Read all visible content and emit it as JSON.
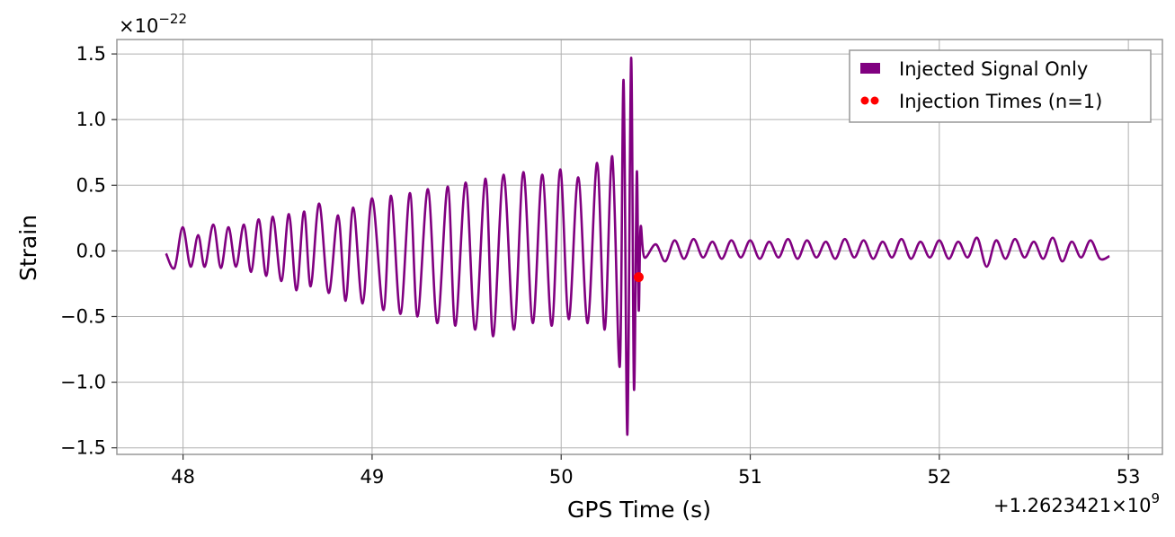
{
  "chart_data": {
    "type": "line",
    "title": "",
    "xlabel": "GPS Time (s)",
    "ylabel": "Strain",
    "x_offset_label": "+1.2623421×10",
    "x_offset_exp": "9",
    "y_scale_label": "×10",
    "y_scale_exp": "−22",
    "xlim": [
      47.65,
      53.18
    ],
    "ylim": [
      -1.55,
      1.61
    ],
    "grid": true,
    "legend_position": "top-right",
    "x_ticks": [
      48,
      49,
      50,
      51,
      52,
      53
    ],
    "x_tick_labels": [
      "48",
      "49",
      "50",
      "51",
      "52",
      "53"
    ],
    "y_ticks": [
      1.5,
      1.0,
      0.5,
      0.0,
      -0.5,
      -1.0,
      -1.5
    ],
    "y_tick_labels": [
      "1.5",
      "1.0",
      "0.5",
      "0.0",
      "−0.5",
      "−1.0",
      "−1.5"
    ],
    "series": [
      {
        "name": "Injected Signal Only",
        "color": "#800080",
        "x": [
          47.91,
          47.955,
          47.998,
          48.04,
          48.08,
          48.115,
          48.16,
          48.2,
          48.24,
          48.28,
          48.322,
          48.36,
          48.4,
          48.44,
          48.475,
          48.52,
          48.56,
          48.6,
          48.64,
          48.675,
          48.72,
          48.77,
          48.82,
          48.86,
          48.9,
          48.95,
          49.0,
          49.06,
          49.1,
          49.15,
          49.2,
          49.24,
          49.295,
          49.345,
          49.4,
          49.44,
          49.495,
          49.545,
          49.6,
          49.64,
          49.695,
          49.75,
          49.8,
          49.85,
          49.9,
          49.95,
          49.995,
          50.04,
          50.09,
          50.14,
          50.19,
          50.23,
          50.27,
          50.31,
          50.33,
          50.35,
          50.37,
          50.385,
          50.4,
          50.41,
          50.42,
          50.44,
          50.5,
          50.55,
          50.6,
          50.65,
          50.7,
          50.75,
          50.8,
          50.85,
          50.9,
          50.95,
          51.0,
          51.05,
          51.1,
          51.15,
          51.2,
          51.25,
          51.3,
          51.35,
          51.4,
          51.45,
          51.5,
          51.55,
          51.6,
          51.65,
          51.7,
          51.75,
          51.8,
          51.85,
          51.9,
          51.95,
          52.0,
          52.05,
          52.1,
          52.15,
          52.2,
          52.25,
          52.3,
          52.35,
          52.4,
          52.45,
          52.5,
          52.55,
          52.6,
          52.65,
          52.7,
          52.75,
          52.8,
          52.85,
          52.9
        ],
        "y": [
          -0.02,
          -0.13,
          0.18,
          -0.12,
          0.12,
          -0.12,
          0.2,
          -0.13,
          0.18,
          -0.12,
          0.2,
          -0.16,
          0.24,
          -0.19,
          0.26,
          -0.23,
          0.28,
          -0.3,
          0.3,
          -0.27,
          0.36,
          -0.32,
          0.27,
          -0.38,
          0.33,
          -0.4,
          0.4,
          -0.45,
          0.42,
          -0.48,
          0.44,
          -0.5,
          0.47,
          -0.55,
          0.49,
          -0.57,
          0.52,
          -0.6,
          0.55,
          -0.65,
          0.58,
          -0.6,
          0.6,
          -0.55,
          0.58,
          -0.57,
          0.62,
          -0.52,
          0.56,
          -0.55,
          0.67,
          -0.6,
          0.72,
          -0.88,
          1.3,
          -1.4,
          1.47,
          -1.05,
          0.6,
          -0.45,
          0.18,
          -0.05,
          0.05,
          -0.08,
          0.08,
          -0.06,
          0.09,
          -0.05,
          0.07,
          -0.06,
          0.08,
          -0.05,
          0.08,
          -0.06,
          0.07,
          -0.05,
          0.09,
          -0.06,
          0.08,
          -0.05,
          0.07,
          -0.06,
          0.09,
          -0.05,
          0.08,
          -0.06,
          0.07,
          -0.05,
          0.09,
          -0.06,
          0.07,
          -0.05,
          0.08,
          -0.06,
          0.07,
          -0.05,
          0.1,
          -0.12,
          0.08,
          -0.06,
          0.09,
          -0.05,
          0.07,
          -0.06,
          0.1,
          -0.08,
          0.07,
          -0.05,
          0.08,
          -0.06,
          -0.04
        ]
      },
      {
        "name": "Injection Times (n=1)",
        "color": "#ff0000",
        "x": [
          50.41
        ],
        "y": [
          -0.2
        ]
      }
    ]
  }
}
